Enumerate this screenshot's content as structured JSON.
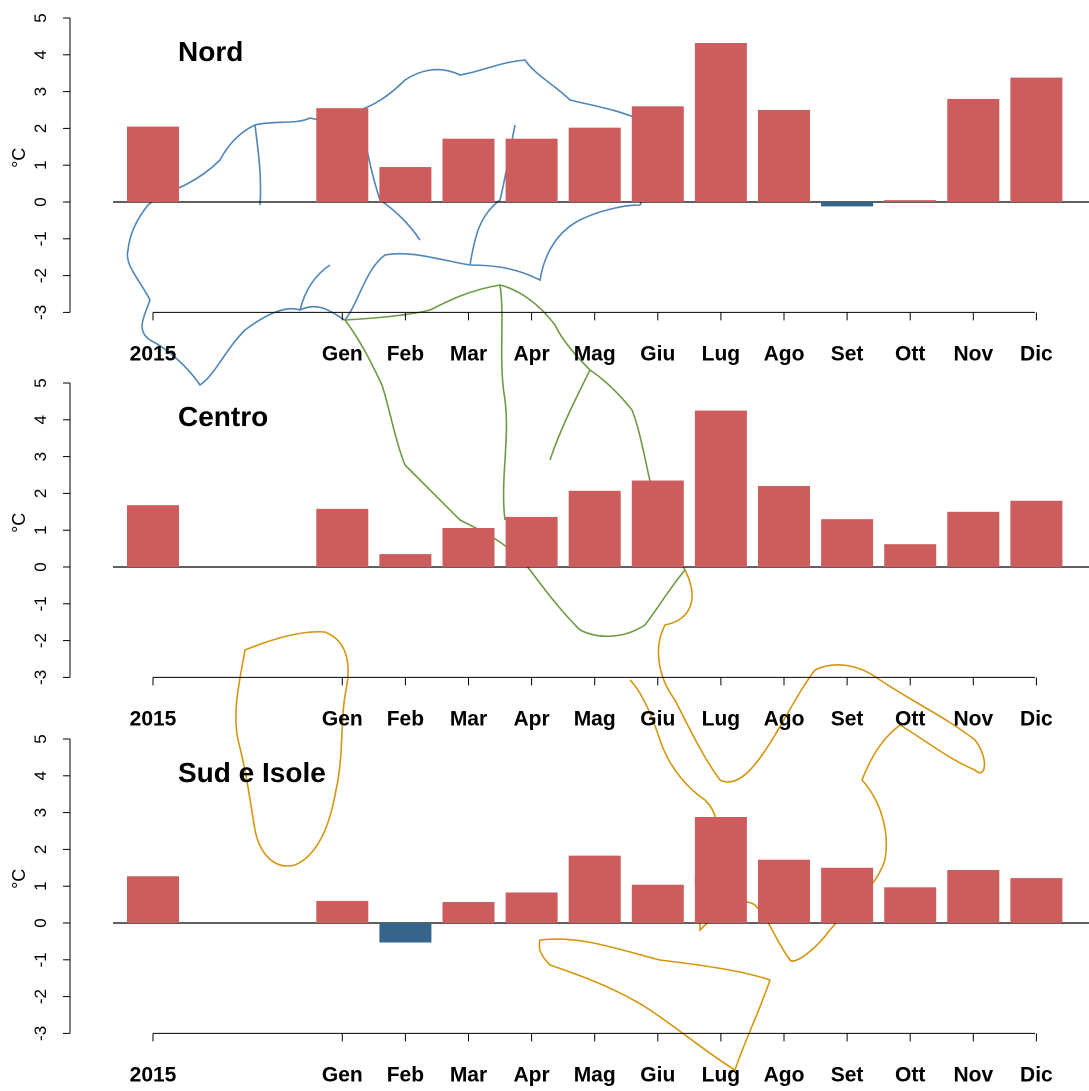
{
  "colors": {
    "positive_bar": "#cd5c5c",
    "negative_bar": "#36648b",
    "map_nord": "#4f86b8",
    "map_centro": "#6e9a45",
    "map_sud": "#d4960f"
  },
  "chart_data": [
    {
      "type": "bar",
      "title": "Nord",
      "ylabel": "°C",
      "ylim": [
        -3,
        5
      ],
      "yticks": [
        "-3",
        "-2",
        "-1",
        "0",
        "1",
        "2",
        "3",
        "4",
        "5"
      ],
      "categories": [
        "2015",
        "Gen",
        "Feb",
        "Mar",
        "Apr",
        "Mag",
        "Giu",
        "Lug",
        "Ago",
        "Set",
        "Ott",
        "Nov",
        "Dic"
      ],
      "values": [
        2.05,
        2.55,
        0.95,
        1.72,
        1.72,
        2.02,
        2.6,
        4.32,
        2.5,
        -0.12,
        0.05,
        2.8,
        3.38
      ]
    },
    {
      "type": "bar",
      "title": "Centro",
      "ylabel": "°C",
      "ylim": [
        -3,
        5
      ],
      "yticks": [
        "-3",
        "-2",
        "-1",
        "0",
        "1",
        "2",
        "3",
        "4",
        "5"
      ],
      "categories": [
        "2015",
        "Gen",
        "Feb",
        "Mar",
        "Apr",
        "Mag",
        "Giu",
        "Lug",
        "Ago",
        "Set",
        "Ott",
        "Nov",
        "Dic"
      ],
      "values": [
        1.68,
        1.58,
        0.35,
        1.06,
        1.36,
        2.07,
        2.35,
        4.25,
        2.2,
        1.3,
        0.62,
        1.5,
        1.8
      ]
    },
    {
      "type": "bar",
      "title": "Sud e Isole",
      "ylabel": "°C",
      "ylim": [
        -3,
        5
      ],
      "yticks": [
        "-3",
        "-2",
        "-1",
        "0",
        "1",
        "2",
        "3",
        "4",
        "5"
      ],
      "categories": [
        "2015",
        "Gen",
        "Feb",
        "Mar",
        "Apr",
        "Mag",
        "Giu",
        "Lug",
        "Ago",
        "Set",
        "Ott",
        "Nov",
        "Dic"
      ],
      "values": [
        1.27,
        0.6,
        -0.53,
        0.57,
        0.83,
        1.83,
        1.04,
        2.88,
        1.72,
        1.5,
        0.97,
        1.44,
        1.22
      ]
    }
  ]
}
